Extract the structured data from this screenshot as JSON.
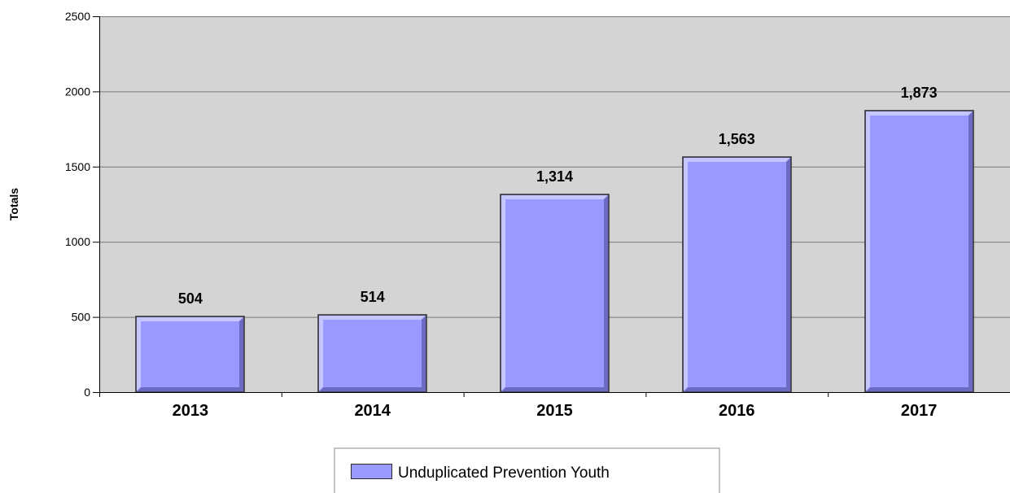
{
  "chart_data": {
    "type": "bar",
    "categories": [
      "2013",
      "2014",
      "2015",
      "2016",
      "2017"
    ],
    "series": [
      {
        "name": "Unduplicated Prevention Youth",
        "values": [
          504,
          514,
          1314,
          1563,
          1873
        ],
        "data_labels": [
          "504",
          "514",
          "1,314",
          "1,563",
          "1,873"
        ]
      }
    ],
    "title": "",
    "xlabel": "",
    "ylabel": "Totals",
    "ylim": [
      0,
      2500
    ],
    "yticks": [
      0,
      500,
      1000,
      1500,
      2000,
      2500
    ],
    "ytick_labels": [
      "0",
      "500",
      "1000",
      "1500",
      "2000",
      "2500"
    ],
    "grid": true,
    "legend_position": "bottom-center",
    "colors": {
      "plot_background": "#d4d4d4",
      "bar_fill": "#9999ff",
      "bar_highlight": "#c6c6ff",
      "bar_shadow": "#6b6bc4",
      "bar_outline": "#2a2a2a",
      "gridline": "#777777",
      "axis": "#000000"
    }
  }
}
